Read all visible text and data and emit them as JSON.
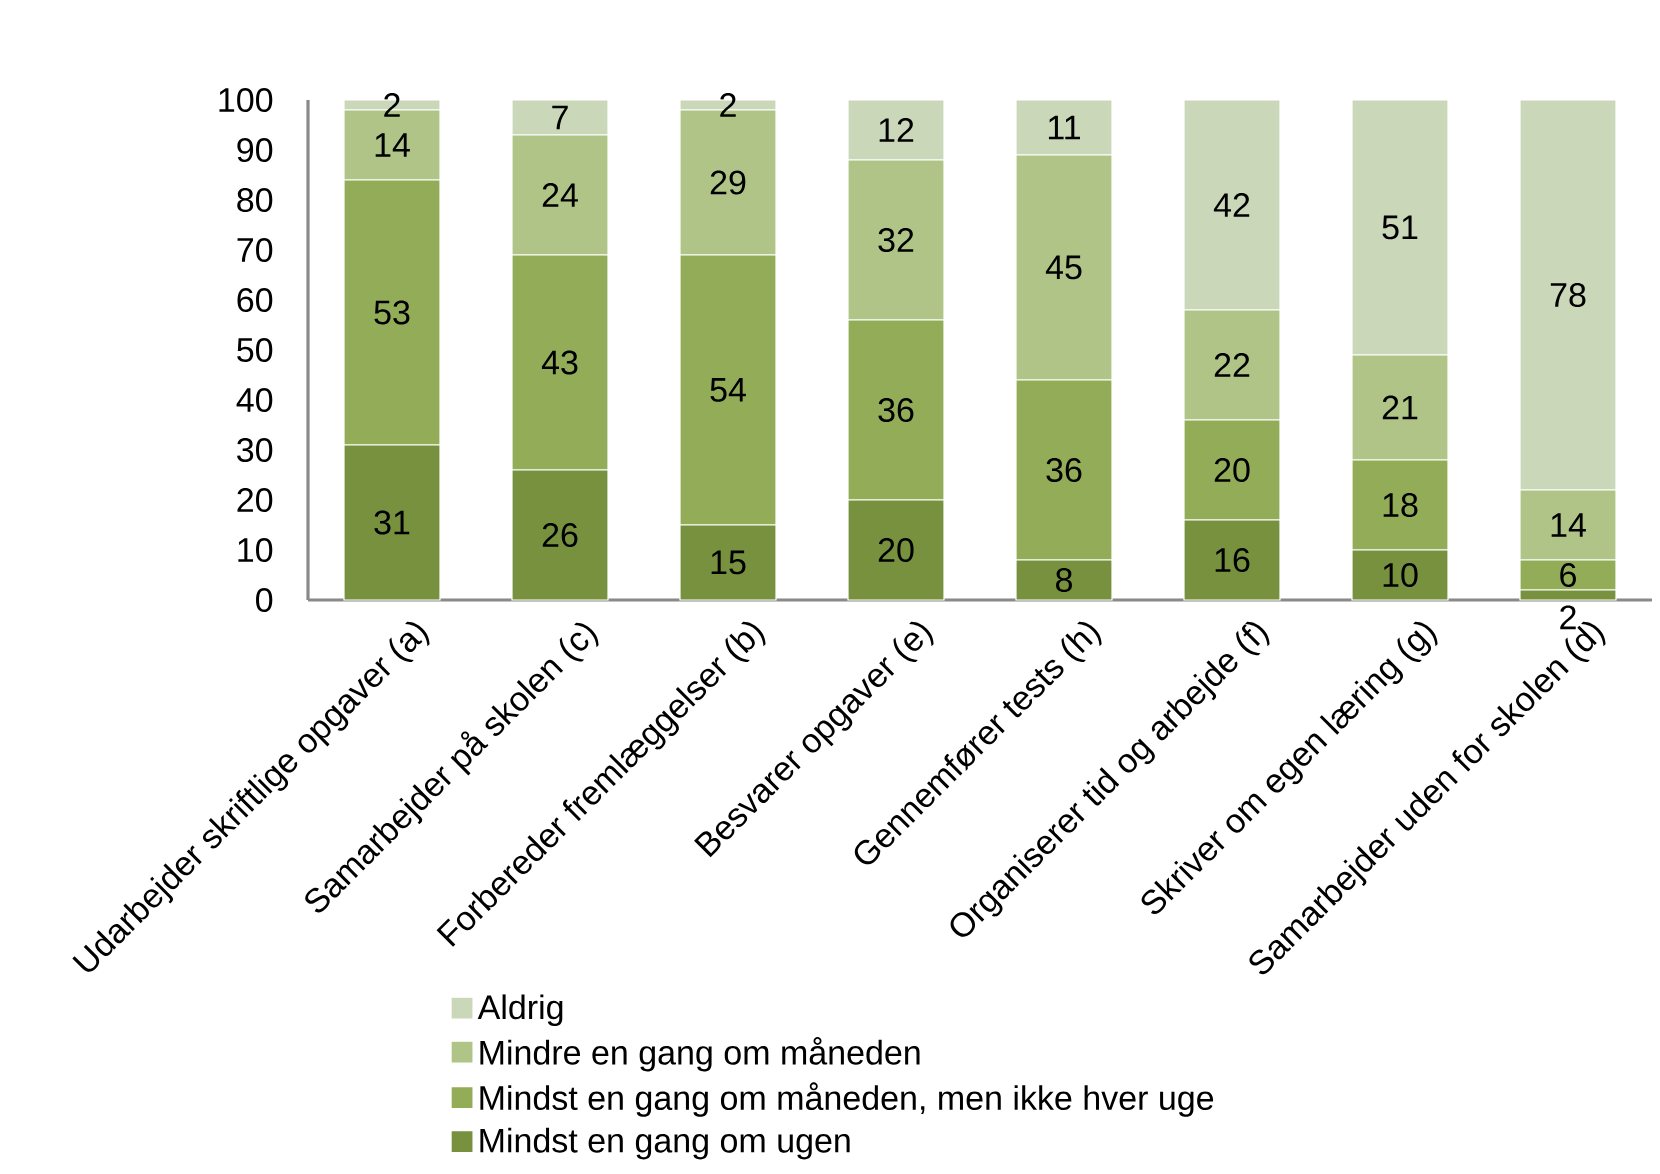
{
  "chart_data": {
    "type": "bar",
    "stacked": true,
    "categories": [
      "Udarbejder skriftlige opgaver (a)",
      "Samarbejder på skolen (c)",
      "Forbereder fremlæggelser (b)",
      "Besvarer opgaver (e)",
      "Gennemfører tests (h)",
      "Organiserer tid og arbejde (f)",
      "Skriver om egen læring (g)",
      "Samarbejder uden for skolen (d)"
    ],
    "series": [
      {
        "name": "Mindst en gang om ugen",
        "color": "#77913F",
        "values": [
          31,
          26,
          15,
          20,
          8,
          16,
          10,
          2
        ]
      },
      {
        "name": "Mindst en gang om måneden, men ikke hver uge",
        "color": "#93AC57",
        "values": [
          53,
          43,
          54,
          36,
          36,
          20,
          18,
          6
        ]
      },
      {
        "name": "Mindre en gang om måneden",
        "color": "#AFC486",
        "values": [
          14,
          24,
          29,
          32,
          45,
          22,
          21,
          14
        ]
      },
      {
        "name": "Aldrig",
        "color": "#CAD7B8",
        "values": [
          2,
          7,
          2,
          12,
          11,
          42,
          51,
          78
        ]
      }
    ],
    "ylim": [
      0,
      100
    ],
    "yticks": [
      0,
      10,
      20,
      30,
      40,
      50,
      60,
      70,
      80,
      90,
      100
    ],
    "data_labels": true,
    "legend": "bottom",
    "grid": false
  }
}
